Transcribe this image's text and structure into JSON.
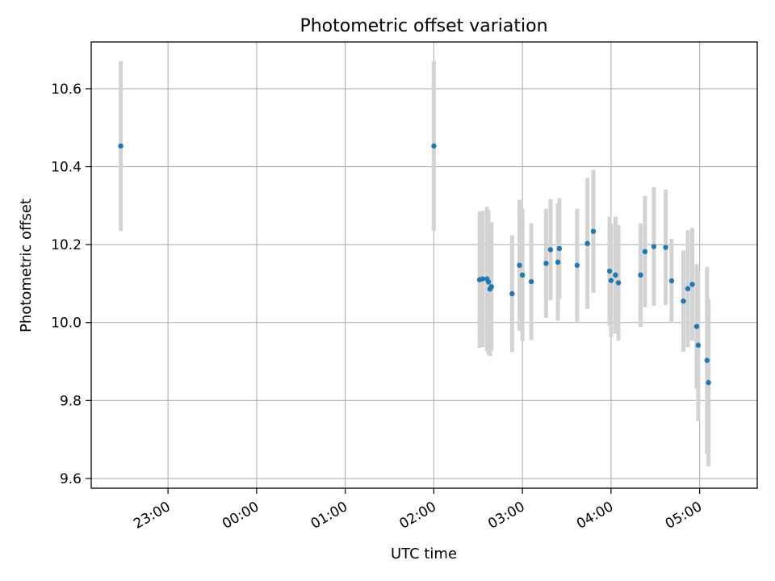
{
  "chart_data": {
    "type": "scatter",
    "title": "Photometric offset variation",
    "xlabel": "UTC time",
    "ylabel": "Photometric offset",
    "x_unit": "UTC time (HH:MM)",
    "xlim": [
      "22:08",
      "05:39"
    ],
    "ylim": [
      9.575,
      10.72
    ],
    "grid": true,
    "x_ticks": [
      "23:00",
      "00:00",
      "01:00",
      "02:00",
      "03:00",
      "04:00",
      "05:00"
    ],
    "y_ticks": [
      9.6,
      9.8,
      10.0,
      10.2,
      10.4,
      10.6
    ],
    "y_tick_labels": [
      "9.6",
      "9.8",
      "10.0",
      "10.2",
      "10.4",
      "10.6"
    ],
    "marker_color": "#1f77b4",
    "errorbar_color": "#d3d3d3",
    "points": [
      {
        "x": "22:28",
        "y": 10.453,
        "err": 0.218
      },
      {
        "x": "02:00",
        "y": 10.453,
        "err": 0.218
      },
      {
        "x": "02:31",
        "y": 10.11,
        "err": 0.175
      },
      {
        "x": "02:33",
        "y": 10.112,
        "err": 0.175
      },
      {
        "x": "02:36",
        "y": 10.112,
        "err": 0.185
      },
      {
        "x": "02:37",
        "y": 10.104,
        "err": 0.185
      },
      {
        "x": "02:38",
        "y": 10.086,
        "err": 0.172
      },
      {
        "x": "02:39",
        "y": 10.092,
        "err": 0.165
      },
      {
        "x": "02:53",
        "y": 10.074,
        "err": 0.15
      },
      {
        "x": "02:58",
        "y": 10.147,
        "err": 0.168
      },
      {
        "x": "03:00",
        "y": 10.122,
        "err": 0.17
      },
      {
        "x": "03:06",
        "y": 10.105,
        "err": 0.15
      },
      {
        "x": "03:16",
        "y": 10.152,
        "err": 0.14
      },
      {
        "x": "03:19",
        "y": 10.187,
        "err": 0.13
      },
      {
        "x": "03:24",
        "y": 10.155,
        "err": 0.15
      },
      {
        "x": "03:25",
        "y": 10.19,
        "err": 0.13
      },
      {
        "x": "03:37",
        "y": 10.147,
        "err": 0.145
      },
      {
        "x": "03:44",
        "y": 10.203,
        "err": 0.168
      },
      {
        "x": "03:48",
        "y": 10.234,
        "err": 0.158
      },
      {
        "x": "03:59",
        "y": 10.132,
        "err": 0.14
      },
      {
        "x": "04:00",
        "y": 10.108,
        "err": 0.145
      },
      {
        "x": "04:03",
        "y": 10.122,
        "err": 0.15
      },
      {
        "x": "04:05",
        "y": 10.102,
        "err": 0.148
      },
      {
        "x": "04:20",
        "y": 10.122,
        "err": 0.133
      },
      {
        "x": "04:23",
        "y": 10.182,
        "err": 0.143
      },
      {
        "x": "04:29",
        "y": 10.195,
        "err": 0.152
      },
      {
        "x": "04:37",
        "y": 10.193,
        "err": 0.148
      },
      {
        "x": "04:41",
        "y": 10.107,
        "err": 0.108
      },
      {
        "x": "04:49",
        "y": 10.055,
        "err": 0.13
      },
      {
        "x": "04:52",
        "y": 10.087,
        "err": 0.15
      },
      {
        "x": "04:55",
        "y": 10.098,
        "err": 0.145
      },
      {
        "x": "04:58",
        "y": 9.99,
        "err": 0.16
      },
      {
        "x": "04:59",
        "y": 9.942,
        "err": 0.195
      },
      {
        "x": "05:05",
        "y": 9.903,
        "err": 0.24
      },
      {
        "x": "05:06",
        "y": 9.846,
        "err": 0.215
      }
    ]
  }
}
